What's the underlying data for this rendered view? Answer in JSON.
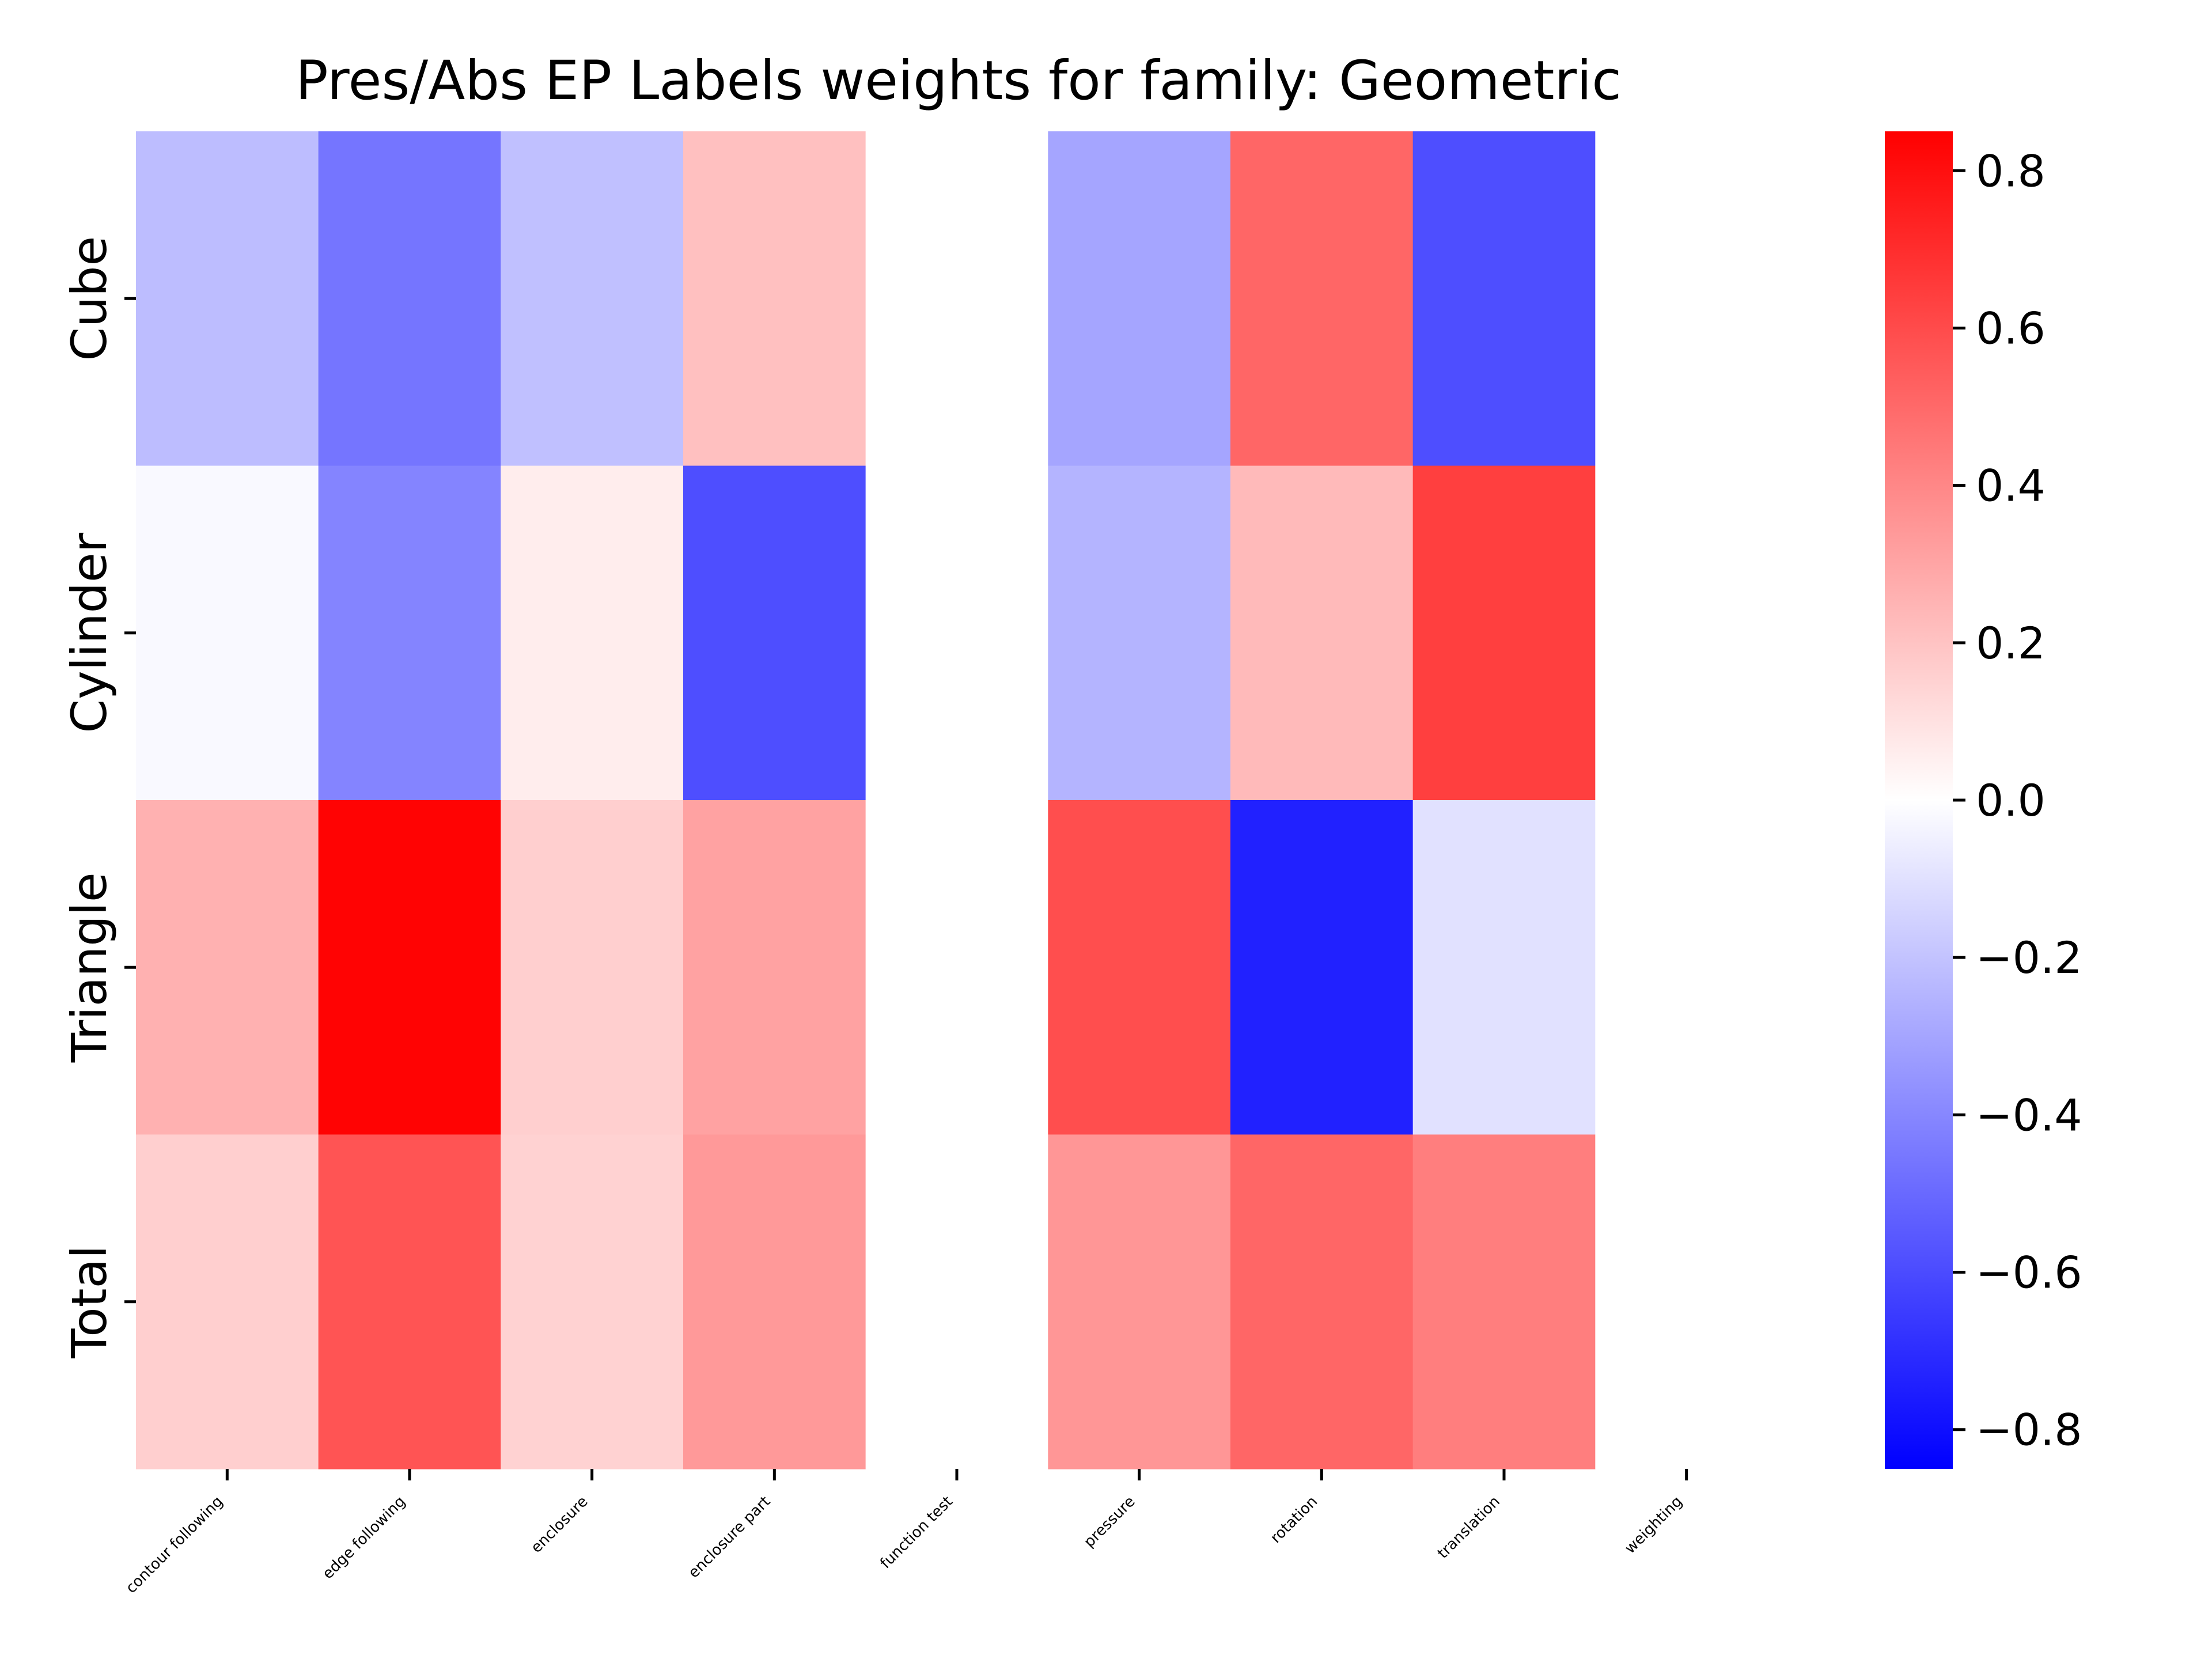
{
  "chart_data": {
    "type": "heatmap",
    "title": "Pres/Abs EP Labels weights for family: Geometric",
    "xlabel": "",
    "ylabel": "",
    "x_categories": [
      "contour following",
      "edge following",
      "enclosure",
      "enclosure part",
      "function test",
      "pressure",
      "rotation",
      "translation",
      "weighting"
    ],
    "y_categories": [
      "Cube",
      "Cylinder",
      "Triangle",
      "Total"
    ],
    "values": [
      [
        -0.22,
        -0.46,
        -0.21,
        0.21,
        0.0,
        -0.3,
        0.51,
        -0.59,
        0.0
      ],
      [
        -0.02,
        -0.41,
        0.06,
        -0.59,
        0.0,
        -0.25,
        0.23,
        0.64,
        0.0
      ],
      [
        0.26,
        0.84,
        0.16,
        0.31,
        0.0,
        0.59,
        -0.74,
        -0.1,
        0.0
      ],
      [
        0.16,
        0.57,
        0.15,
        0.34,
        0.0,
        0.35,
        0.51,
        0.43,
        0.0
      ]
    ],
    "colorbar": {
      "colormap": "bwr",
      "vmin": -0.85,
      "vmax": 0.85,
      "ticks": [
        0.8,
        0.6,
        0.4,
        0.2,
        0.0,
        -0.2,
        -0.4,
        -0.6,
        -0.8
      ],
      "tick_labels": [
        "0.8",
        "0.6",
        "0.4",
        "0.2",
        "0.0",
        "−0.2",
        "−0.4",
        "−0.6",
        "−0.8"
      ],
      "colors": {
        "low": "#0000ff",
        "mid": "#ffffff",
        "high": "#ff0000"
      }
    },
    "grid": false,
    "legend": "colorbar-right"
  }
}
